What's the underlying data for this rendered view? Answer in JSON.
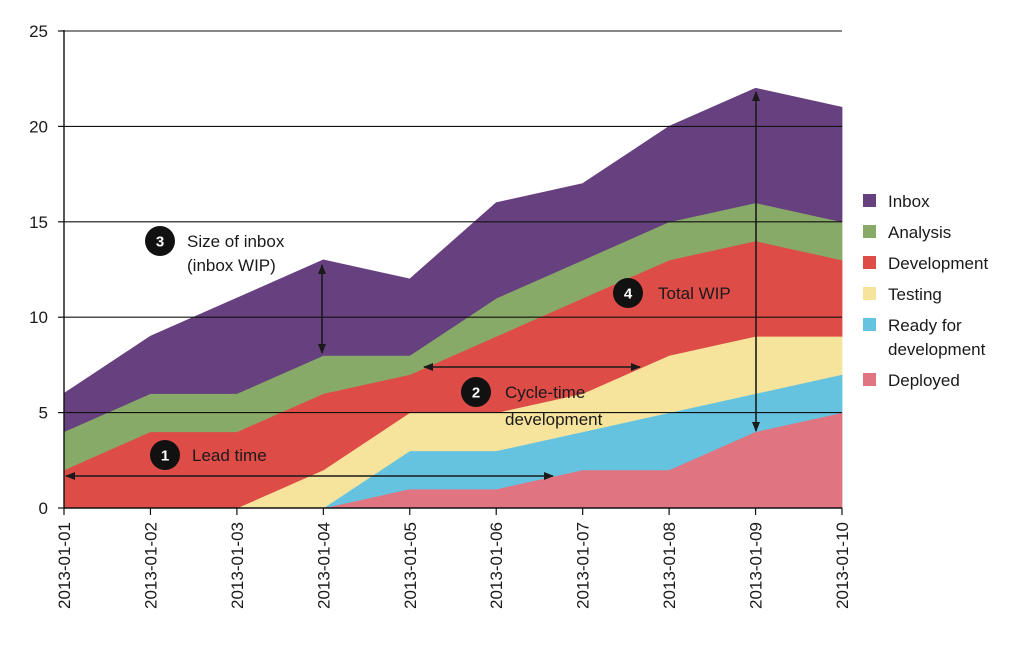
{
  "chart_data": {
    "type": "area",
    "stacked": true,
    "x": [
      "2013-01-01",
      "2013-01-02",
      "2013-01-03",
      "2013-01-04",
      "2013-01-05",
      "2013-01-06",
      "2013-01-07",
      "2013-01-08",
      "2013-01-09",
      "2013-01-10"
    ],
    "ylim": [
      0,
      25
    ],
    "yticks": [
      0,
      5,
      10,
      15,
      20,
      25
    ],
    "grid": "horizontal",
    "legend_position": "right",
    "series": [
      {
        "name": "Deployed",
        "color": "#e07480",
        "values": [
          0,
          0,
          0,
          0,
          1,
          1,
          2,
          2,
          4,
          5
        ]
      },
      {
        "name": "Ready for development",
        "color": "#65c3e0",
        "values": [
          0,
          0,
          0,
          0,
          2,
          2,
          2,
          3,
          2,
          2
        ]
      },
      {
        "name": "Testing",
        "color": "#f6e39c",
        "values": [
          0,
          0,
          0,
          2,
          2,
          2,
          2,
          3,
          3,
          2
        ]
      },
      {
        "name": "Development",
        "color": "#de4c48",
        "values": [
          2,
          4,
          4,
          4,
          2,
          4,
          5,
          5,
          5,
          4
        ]
      },
      {
        "name": "Analysis",
        "color": "#88aa68",
        "values": [
          2,
          2,
          2,
          2,
          1,
          2,
          2,
          2,
          2,
          2
        ]
      },
      {
        "name": "Inbox",
        "color": "#66407f",
        "values": [
          2,
          3,
          5,
          5,
          4,
          5,
          4,
          5,
          6,
          6
        ]
      }
    ],
    "legend_order": [
      "Inbox",
      "Analysis",
      "Development",
      "Testing",
      "Ready for development",
      "Deployed"
    ],
    "annotations": [
      {
        "number": "1",
        "text": "Lead time"
      },
      {
        "number": "2",
        "text": "Cycle-time development"
      },
      {
        "number": "3",
        "text": "Size of inbox (inbox WIP)"
      },
      {
        "number": "4",
        "text": "Total WIP"
      }
    ]
  }
}
